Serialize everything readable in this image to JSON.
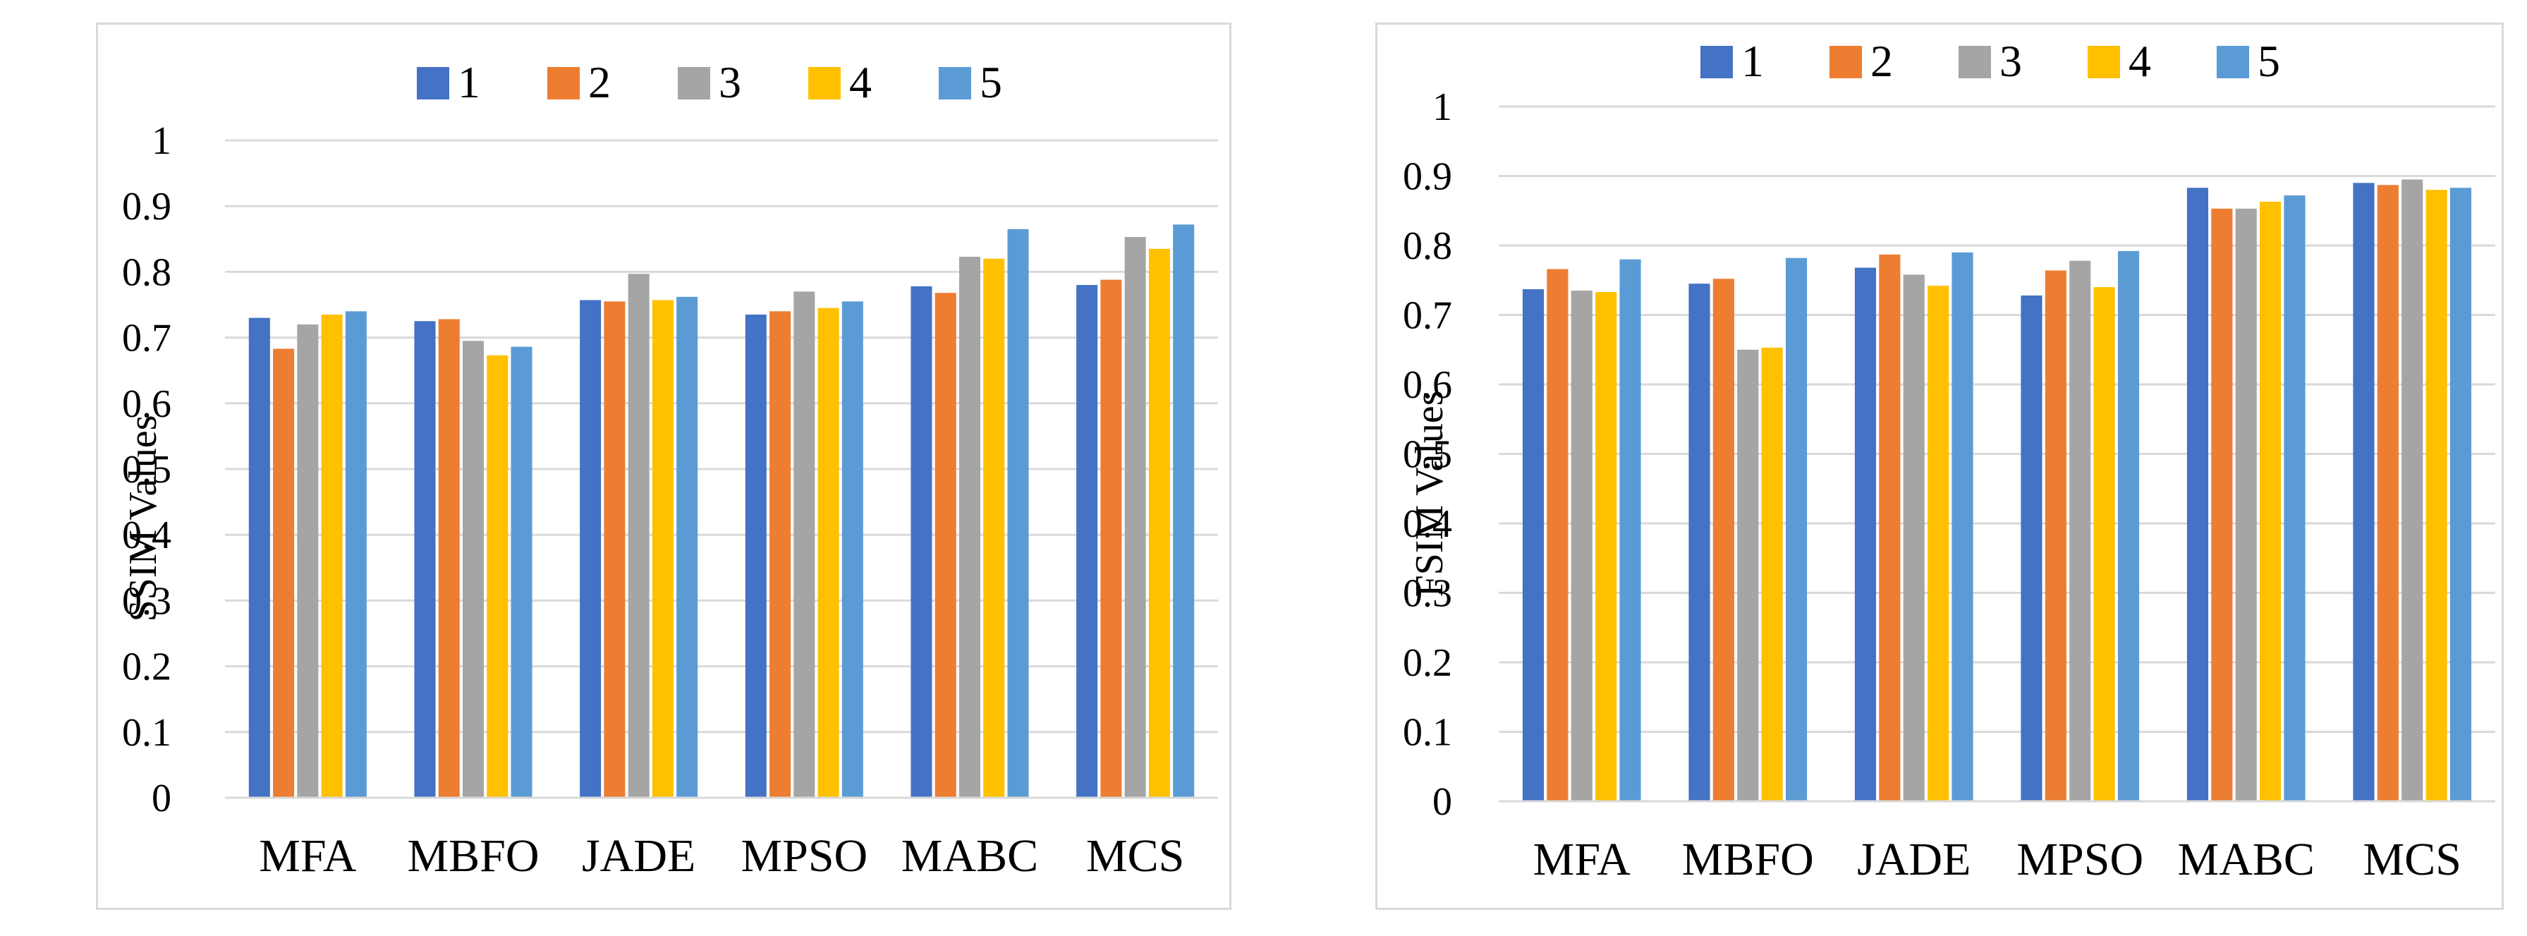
{
  "chart_data": [
    {
      "type": "bar",
      "title": "",
      "xlabel": "",
      "ylabel": "SSIM Values",
      "ylim": [
        0,
        1
      ],
      "yticks": [
        "0",
        "0.1",
        "0.2",
        "0.3",
        "0.4",
        "0.5",
        "0.6",
        "0.7",
        "0.8",
        "0.9",
        "1"
      ],
      "grid": true,
      "legend": "top-center",
      "categories": [
        "MFA",
        "MBFO",
        "JADE",
        "MPSO",
        "MABC",
        "MCS"
      ],
      "series": [
        {
          "name": "1",
          "color": "#4472C4",
          "values": [
            0.73,
            0.725,
            0.757,
            0.735,
            0.778,
            0.78
          ]
        },
        {
          "name": "2",
          "color": "#ED7D31",
          "values": [
            0.683,
            0.728,
            0.755,
            0.74,
            0.768,
            0.788
          ]
        },
        {
          "name": "3",
          "color": "#A5A5A5",
          "values": [
            0.72,
            0.695,
            0.797,
            0.77,
            0.823,
            0.853
          ]
        },
        {
          "name": "4",
          "color": "#FFC000",
          "values": [
            0.735,
            0.673,
            0.757,
            0.745,
            0.82,
            0.835
          ]
        },
        {
          "name": "5",
          "color": "#5B9BD5",
          "values": [
            0.74,
            0.686,
            0.762,
            0.755,
            0.865,
            0.872
          ]
        }
      ]
    },
    {
      "type": "bar",
      "title": "",
      "xlabel": "",
      "ylabel": "FSIM Values",
      "ylim": [
        0,
        1
      ],
      "yticks": [
        "0",
        "0.1",
        "0.2",
        "0.3",
        "0.4",
        "0.5",
        "0.6",
        "0.7",
        "0.8",
        "0.9",
        "1"
      ],
      "grid": true,
      "legend": "top-center",
      "categories": [
        "MFA",
        "MBFO",
        "JADE",
        "MPSO",
        "MABC",
        "MCS"
      ],
      "series": [
        {
          "name": "1",
          "color": "#4472C4",
          "values": [
            0.737,
            0.745,
            0.768,
            0.728,
            0.883,
            0.89
          ]
        },
        {
          "name": "2",
          "color": "#ED7D31",
          "values": [
            0.766,
            0.752,
            0.787,
            0.764,
            0.853,
            0.887
          ]
        },
        {
          "name": "3",
          "color": "#A5A5A5",
          "values": [
            0.735,
            0.65,
            0.758,
            0.778,
            0.853,
            0.895
          ]
        },
        {
          "name": "4",
          "color": "#FFC000",
          "values": [
            0.733,
            0.653,
            0.742,
            0.74,
            0.863,
            0.88
          ]
        },
        {
          "name": "5",
          "color": "#5B9BD5",
          "values": [
            0.78,
            0.782,
            0.79,
            0.792,
            0.872,
            0.883
          ]
        }
      ]
    }
  ]
}
